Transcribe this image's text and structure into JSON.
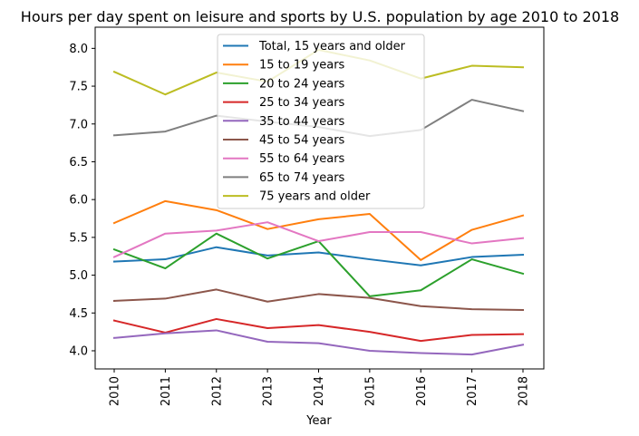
{
  "chart_data": {
    "type": "line",
    "title": "Hours per day spent on leisure and sports by U.S. population by age 2010 to 2018",
    "xlabel": "Year",
    "ylabel": "",
    "categories": [
      "2010",
      "2011",
      "2012",
      "2013",
      "2014",
      "2015",
      "2016",
      "2017",
      "2018"
    ],
    "ylim": [
      3.76,
      8.28
    ],
    "yticks": [
      "4.0",
      "4.5",
      "5.0",
      "5.5",
      "6.0",
      "6.5",
      "7.0",
      "7.5",
      "8.0"
    ],
    "grid": false,
    "legend_position": "top-center",
    "series": [
      {
        "name": "Total, 15 years and older",
        "color": "#1f77b4",
        "values": [
          5.18,
          5.21,
          5.37,
          5.26,
          5.3,
          5.21,
          5.13,
          5.24,
          5.27
        ]
      },
      {
        "name": "15 to 19 years",
        "color": "#ff7f0e",
        "values": [
          5.69,
          5.98,
          5.86,
          5.61,
          5.74,
          5.81,
          5.2,
          5.6,
          5.79
        ]
      },
      {
        "name": "20 to 24 years",
        "color": "#2ca02c",
        "values": [
          5.34,
          5.09,
          5.55,
          5.22,
          5.45,
          4.72,
          4.8,
          5.21,
          5.02
        ]
      },
      {
        "name": "25 to 34 years",
        "color": "#d62728",
        "values": [
          4.4,
          4.24,
          4.42,
          4.3,
          4.34,
          4.25,
          4.13,
          4.21,
          4.22
        ]
      },
      {
        "name": "35 to 44 years",
        "color": "#9467bd",
        "values": [
          4.17,
          4.23,
          4.27,
          4.12,
          4.1,
          4.0,
          3.97,
          3.95,
          4.08
        ]
      },
      {
        "name": "45 to 54 years",
        "color": "#8c564b",
        "values": [
          4.66,
          4.69,
          4.81,
          4.65,
          4.75,
          4.7,
          4.59,
          4.55,
          4.54
        ]
      },
      {
        "name": "55 to 64 years",
        "color": "#e377c2",
        "values": [
          5.24,
          5.55,
          5.59,
          5.7,
          5.45,
          5.57,
          5.57,
          5.42,
          5.49
        ]
      },
      {
        "name": "65 to 74 years",
        "color": "#7f7f7f",
        "values": [
          6.85,
          6.9,
          7.11,
          7.03,
          6.96,
          6.84,
          6.92,
          7.32,
          7.17
        ]
      },
      {
        "name": "75 years and older",
        "color": "#bcbd22",
        "values": [
          7.69,
          7.39,
          7.68,
          7.56,
          7.98,
          7.84,
          7.6,
          7.77,
          7.75
        ]
      }
    ]
  }
}
